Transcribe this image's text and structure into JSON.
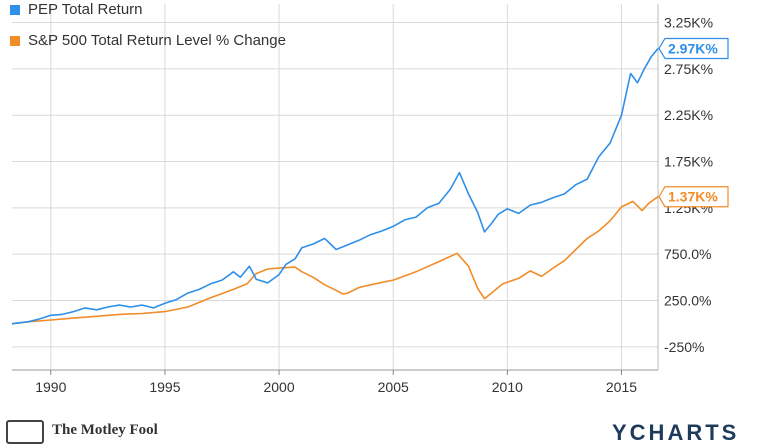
{
  "legend": {
    "pep_label": "PEP Total Return",
    "sp_label": "S&P 500 Total Return Level % Change"
  },
  "footer": {
    "fool_text": "The Motley Fool",
    "ycharts_text": "YCHARTS"
  },
  "colors": {
    "pep": "#2e90e8",
    "sp": "#f28c28",
    "grid": "#d9d9d9",
    "axis_text": "#333333"
  },
  "chart_data": {
    "type": "line",
    "x_ticks": [
      "1990",
      "1995",
      "2000",
      "2005",
      "2010",
      "2015"
    ],
    "y_ticks": [
      "3.25K%",
      "2.75K%",
      "2.25K%",
      "1.75K%",
      "1.25K%",
      "750.0%",
      "250.0%",
      "-250%"
    ],
    "xlim": [
      1988.3,
      2016.6
    ],
    "ylim": [
      -500,
      3450
    ],
    "grid": true,
    "legend_position": "top-left",
    "end_labels": {
      "pep": "2.97K%",
      "sp": "1.37K%"
    },
    "series": [
      {
        "name": "PEP Total Return",
        "key": "pep",
        "x": [
          1988.3,
          1989,
          1989.5,
          1990,
          1990.5,
          1991,
          1991.5,
          1992,
          1992.5,
          1993,
          1993.5,
          1994,
          1994.5,
          1995,
          1995.5,
          1996,
          1996.5,
          1997,
          1997.5,
          1998,
          1998.3,
          1998.7,
          1999,
          1999.5,
          2000,
          2000.3,
          2000.7,
          2001,
          2001.5,
          2002,
          2002.5,
          2003,
          2003.5,
          2004,
          2004.5,
          2005,
          2005.5,
          2006,
          2006.5,
          2007,
          2007.5,
          2007.9,
          2008.3,
          2008.7,
          2009,
          2009.3,
          2009.6,
          2010,
          2010.5,
          2011,
          2011.5,
          2012,
          2012.5,
          2013,
          2013.5,
          2014,
          2014.5,
          2015,
          2015.4,
          2015.7,
          2016,
          2016.3,
          2016.6
        ],
        "y": [
          0,
          20,
          50,
          90,
          100,
          130,
          170,
          150,
          180,
          200,
          180,
          200,
          170,
          220,
          260,
          330,
          370,
          430,
          470,
          560,
          500,
          620,
          480,
          440,
          530,
          640,
          700,
          820,
          860,
          920,
          800,
          850,
          900,
          960,
          1000,
          1050,
          1120,
          1150,
          1250,
          1300,
          1450,
          1630,
          1400,
          1200,
          990,
          1080,
          1180,
          1240,
          1190,
          1280,
          1310,
          1360,
          1400,
          1500,
          1560,
          1800,
          1950,
          2250,
          2700,
          2600,
          2750,
          2880,
          2970
        ]
      },
      {
        "name": "S&P 500 Total Return Level % Change",
        "key": "sp",
        "x": [
          1988.3,
          1989,
          1990,
          1991,
          1992,
          1993,
          1994,
          1995,
          1996,
          1997,
          1998,
          1998.6,
          1999,
          1999.5,
          2000,
          2000.7,
          2001,
          2001.5,
          2002,
          2002.5,
          2002.8,
          2003,
          2003.5,
          2004,
          2005,
          2006,
          2007,
          2007.8,
          2008.3,
          2008.7,
          2009.0,
          2009.3,
          2009.8,
          2010.5,
          2011,
          2011.5,
          2012,
          2012.5,
          2013,
          2013.5,
          2014,
          2014.5,
          2015,
          2015.5,
          2015.9,
          2016.2,
          2016.6
        ],
        "y": [
          0,
          20,
          40,
          60,
          80,
          100,
          110,
          130,
          180,
          280,
          370,
          430,
          540,
          590,
          600,
          610,
          560,
          500,
          420,
          360,
          320,
          330,
          390,
          420,
          470,
          560,
          670,
          760,
          620,
          380,
          270,
          330,
          430,
          490,
          570,
          510,
          600,
          680,
          800,
          920,
          1000,
          1110,
          1260,
          1320,
          1220,
          1300,
          1370
        ]
      }
    ]
  }
}
